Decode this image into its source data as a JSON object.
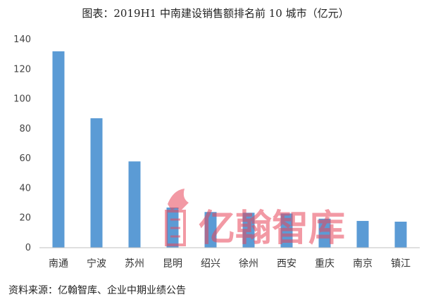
{
  "title": "图表：2019H1 中南建设销售额排名前 10 城市（亿元）",
  "source": "资料来源：亿翰智库、企业中期业绩公告",
  "watermark": {
    "text": "亿翰智库",
    "color": "#e8465a"
  },
  "chart_data": {
    "type": "bar",
    "title": "图表：2019H1 中南建设销售额排名前 10 城市（亿元）",
    "xlabel": "",
    "ylabel": "",
    "categories": [
      "南通",
      "宁波",
      "苏州",
      "昆明",
      "绍兴",
      "徐州",
      "西安",
      "重庆",
      "南京",
      "镇江"
    ],
    "series": [
      {
        "values": [
          132,
          87,
          58,
          27,
          24,
          23.5,
          23,
          19.5,
          18,
          17.5
        ],
        "color": "#5b9bd5"
      }
    ],
    "ylim": [
      0,
      140
    ],
    "yticks": [
      0,
      20,
      40,
      60,
      80,
      100,
      120,
      140
    ],
    "grid": false,
    "legend": "none"
  }
}
